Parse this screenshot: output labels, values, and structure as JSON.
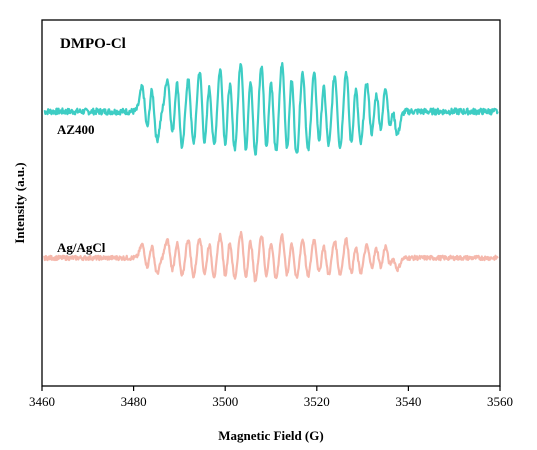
{
  "chart_data": {
    "type": "line",
    "title": "DMPO-Cl",
    "xlabel": "Magnetic Field (G)",
    "ylabel": "Intensity (a.u.)",
    "xlim": [
      3460,
      3560
    ],
    "x_ticks": [
      3460,
      3480,
      3500,
      3520,
      3540,
      3560
    ],
    "y_ticks": [],
    "grid": false,
    "legend": "none",
    "series": [
      {
        "name": "AZ400",
        "color": "#3ecdc4",
        "baseline": 0.75,
        "peaks": [
          {
            "x": 3482.5,
            "amp": 0.12
          },
          {
            "x": 3484.5,
            "amp": 0.14
          },
          {
            "x": 3488.0,
            "amp": 0.16
          },
          {
            "x": 3490.0,
            "amp": 0.19
          },
          {
            "x": 3492.5,
            "amp": 0.17
          },
          {
            "x": 3495.0,
            "amp": 0.21
          },
          {
            "x": 3497.0,
            "amp": 0.18
          },
          {
            "x": 3499.5,
            "amp": 0.22
          },
          {
            "x": 3501.5,
            "amp": 0.2
          },
          {
            "x": 3504.0,
            "amp": 0.26
          },
          {
            "x": 3506.0,
            "amp": 0.23
          },
          {
            "x": 3508.5,
            "amp": 0.24
          },
          {
            "x": 3510.5,
            "amp": 0.22
          },
          {
            "x": 3513.0,
            "amp": 0.25
          },
          {
            "x": 3515.0,
            "amp": 0.23
          },
          {
            "x": 3517.5,
            "amp": 0.21
          },
          {
            "x": 3520.0,
            "amp": 0.2
          },
          {
            "x": 3522.0,
            "amp": 0.18
          },
          {
            "x": 3524.5,
            "amp": 0.19
          },
          {
            "x": 3527.0,
            "amp": 0.21
          },
          {
            "x": 3529.0,
            "amp": 0.17
          },
          {
            "x": 3531.5,
            "amp": 0.15
          },
          {
            "x": 3533.5,
            "amp": 0.13
          },
          {
            "x": 3535.5,
            "amp": 0.16
          },
          {
            "x": 3537.0,
            "amp": 0.11
          }
        ]
      },
      {
        "name": "Ag/AgCl",
        "color": "#f5b8ac",
        "baseline": 0.35,
        "peaks": [
          {
            "x": 3482.5,
            "amp": 0.06
          },
          {
            "x": 3484.5,
            "amp": 0.07
          },
          {
            "x": 3488.0,
            "amp": 0.08
          },
          {
            "x": 3490.0,
            "amp": 0.09
          },
          {
            "x": 3492.5,
            "amp": 0.09
          },
          {
            "x": 3495.0,
            "amp": 0.1
          },
          {
            "x": 3497.0,
            "amp": 0.09
          },
          {
            "x": 3499.5,
            "amp": 0.11
          },
          {
            "x": 3501.5,
            "amp": 0.1
          },
          {
            "x": 3504.0,
            "amp": 0.12
          },
          {
            "x": 3506.0,
            "amp": 0.11
          },
          {
            "x": 3508.5,
            "amp": 0.11
          },
          {
            "x": 3510.5,
            "amp": 0.1
          },
          {
            "x": 3513.0,
            "amp": 0.11
          },
          {
            "x": 3515.0,
            "amp": 0.1
          },
          {
            "x": 3517.5,
            "amp": 0.09
          },
          {
            "x": 3520.0,
            "amp": 0.09
          },
          {
            "x": 3522.0,
            "amp": 0.08
          },
          {
            "x": 3524.5,
            "amp": 0.08
          },
          {
            "x": 3527.0,
            "amp": 0.09
          },
          {
            "x": 3529.0,
            "amp": 0.07
          },
          {
            "x": 3531.5,
            "amp": 0.06
          },
          {
            "x": 3533.5,
            "amp": 0.06
          },
          {
            "x": 3535.5,
            "amp": 0.07
          },
          {
            "x": 3537.0,
            "amp": 0.05
          }
        ]
      }
    ]
  }
}
